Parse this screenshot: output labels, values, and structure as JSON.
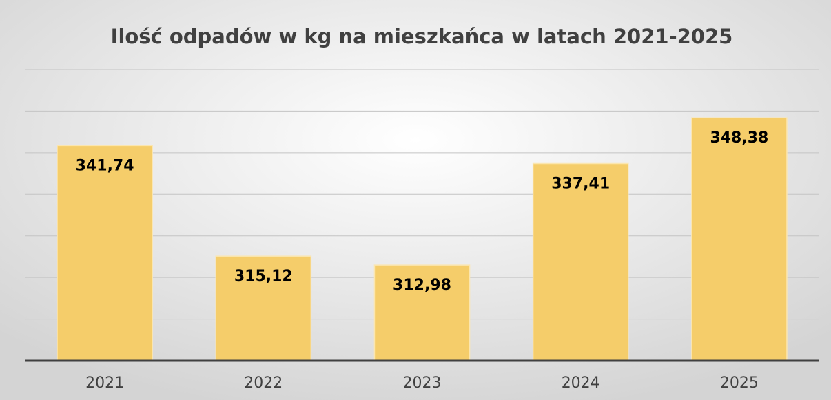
{
  "chart_data": {
    "type": "bar",
    "title": "Ilość odpadów w kg na mieszkańca w latach 2021-2025",
    "categories": [
      "2021",
      "2022",
      "2023",
      "2024",
      "2025"
    ],
    "values": [
      341.74,
      315.12,
      312.98,
      337.41,
      348.38
    ],
    "value_labels": [
      "341,74",
      "315,12",
      "312,98",
      "337,41",
      "348,38"
    ],
    "color": "#f5cd6a",
    "ylim": [
      290,
      360
    ],
    "yticks": [
      290,
      300,
      310,
      320,
      330,
      340,
      350,
      360
    ],
    "grid": true
  }
}
